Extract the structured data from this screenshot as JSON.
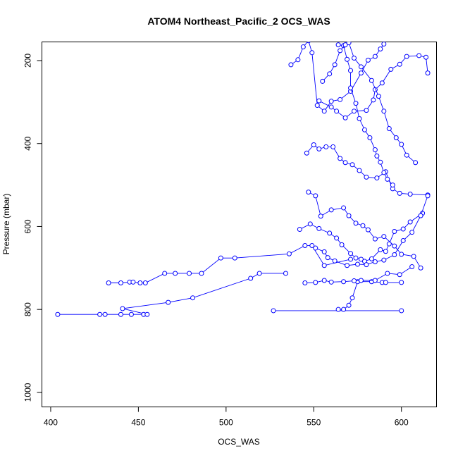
{
  "chart_data": {
    "type": "line",
    "title": "ATOM4 Northeast_Pacific_2 OCS_WAS",
    "xlabel": "OCS_WAS",
    "ylabel": "Pressure (mbar)",
    "xlim": [
      395,
      620
    ],
    "ylim": [
      1035,
      155
    ],
    "y_inverted": true,
    "x_ticks": [
      400,
      450,
      500,
      550,
      600
    ],
    "y_ticks": [
      200,
      400,
      600,
      800,
      1000
    ],
    "grid": false,
    "legend": "none",
    "color": "#0000ff",
    "marker": "open-circle",
    "series": [
      {
        "points": [
          [
            404,
            812
          ],
          [
            428,
            812
          ],
          [
            431,
            812
          ],
          [
            440,
            812
          ],
          [
            446,
            812
          ],
          [
            453,
            812
          ],
          [
            455,
            812
          ],
          [
            441,
            798
          ],
          [
            467,
            783
          ],
          [
            481,
            772
          ],
          [
            514,
            725
          ],
          [
            519,
            713
          ],
          [
            534,
            713
          ]
        ]
      },
      {
        "points": [
          [
            433,
            736
          ],
          [
            440,
            736
          ],
          [
            445,
            734
          ],
          [
            447,
            734
          ],
          [
            451,
            736
          ],
          [
            454,
            736
          ],
          [
            465,
            713
          ],
          [
            471,
            713
          ],
          [
            479,
            713
          ],
          [
            486,
            713
          ],
          [
            497,
            676
          ],
          [
            505,
            676
          ],
          [
            536,
            666
          ],
          [
            545,
            646
          ],
          [
            549,
            646
          ],
          [
            556,
            694
          ],
          [
            571,
            679
          ]
        ]
      },
      {
        "points": [
          [
            527,
            803
          ],
          [
            600,
            803
          ]
        ]
      },
      {
        "points": [
          [
            564,
            800
          ],
          [
            567,
            800
          ],
          [
            570,
            790
          ],
          [
            572,
            772
          ],
          [
            575,
            733
          ],
          [
            583,
            733
          ],
          [
            589,
            735
          ],
          [
            591,
            735
          ],
          [
            600,
            735
          ]
        ]
      },
      {
        "points": [
          [
            545,
            736
          ],
          [
            551,
            735
          ],
          [
            556,
            730
          ],
          [
            560,
            734
          ],
          [
            567,
            733
          ],
          [
            573,
            731
          ],
          [
            577,
            730
          ],
          [
            585,
            730
          ],
          [
            592,
            713
          ],
          [
            599,
            716
          ],
          [
            606,
            697
          ]
        ]
      },
      {
        "points": [
          [
            537,
            210
          ],
          [
            541,
            198
          ],
          [
            544,
            167
          ],
          [
            547,
            152
          ],
          [
            549,
            181
          ],
          [
            552,
            308
          ],
          [
            556,
            322
          ],
          [
            560,
            298
          ],
          [
            565,
            294
          ],
          [
            571,
            274
          ],
          [
            577,
            230
          ],
          [
            581,
            199
          ],
          [
            585,
            190
          ],
          [
            588,
            172
          ],
          [
            590,
            160
          ]
        ]
      },
      {
        "points": [
          [
            553,
            297
          ],
          [
            560,
            312
          ],
          [
            563,
            322
          ],
          [
            568,
            338
          ],
          [
            573,
            322
          ],
          [
            580,
            320
          ],
          [
            584,
            295
          ],
          [
            585,
            270
          ],
          [
            589,
            254
          ],
          [
            594,
            221
          ],
          [
            599,
            209
          ],
          [
            603,
            190
          ],
          [
            610,
            188
          ],
          [
            614,
            192
          ],
          [
            615,
            230
          ]
        ]
      },
      {
        "points": [
          [
            546,
            423
          ],
          [
            550,
            403
          ],
          [
            553,
            413
          ],
          [
            557,
            408
          ],
          [
            561,
            408
          ],
          [
            565,
            436
          ],
          [
            568,
            446
          ],
          [
            572,
            451
          ],
          [
            576,
            465
          ],
          [
            580,
            481
          ],
          [
            586,
            483
          ],
          [
            591,
            468
          ],
          [
            595,
            509
          ],
          [
            599,
            520
          ],
          [
            605,
            522
          ],
          [
            615,
            524
          ]
        ]
      },
      {
        "points": [
          [
            547,
            517
          ],
          [
            551,
            526
          ],
          [
            554,
            575
          ],
          [
            560,
            560
          ],
          [
            567,
            555
          ],
          [
            570,
            574
          ],
          [
            574,
            592
          ],
          [
            578,
            598
          ],
          [
            581,
            608
          ],
          [
            585,
            630
          ],
          [
            590,
            624
          ],
          [
            596,
            647
          ],
          [
            600,
            667
          ],
          [
            607,
            672
          ],
          [
            611,
            700
          ]
        ]
      },
      {
        "points": [
          [
            542,
            607
          ],
          [
            548,
            594
          ],
          [
            553,
            605
          ],
          [
            559,
            616
          ],
          [
            563,
            628
          ],
          [
            566,
            644
          ],
          [
            571,
            665
          ],
          [
            574,
            676
          ],
          [
            577,
            679
          ],
          [
            579,
            684
          ],
          [
            583,
            678
          ],
          [
            588,
            656
          ],
          [
            591,
            660
          ],
          [
            593,
            642
          ],
          [
            596,
            612
          ],
          [
            601,
            606
          ],
          [
            605,
            589
          ],
          [
            612,
            568
          ]
        ]
      },
      {
        "points": [
          [
            551,
            652
          ],
          [
            556,
            661
          ],
          [
            558,
            675
          ],
          [
            562,
            683
          ],
          [
            569,
            694
          ],
          [
            575,
            691
          ],
          [
            580,
            692
          ],
          [
            585,
            685
          ],
          [
            590,
            681
          ],
          [
            596,
            668
          ],
          [
            601,
            634
          ],
          [
            606,
            614
          ],
          [
            611,
            574
          ],
          [
            615,
            526
          ]
        ]
      },
      {
        "points": [
          [
            564,
            162
          ],
          [
            567,
            164
          ],
          [
            569,
            197
          ],
          [
            571,
            224
          ],
          [
            571,
            266
          ],
          [
            574,
            303
          ],
          [
            576,
            340
          ],
          [
            579,
            367
          ],
          [
            582,
            386
          ],
          [
            585,
            415
          ],
          [
            586,
            430
          ],
          [
            588,
            445
          ],
          [
            590,
            470
          ],
          [
            592,
            486
          ],
          [
            595,
            500
          ]
        ]
      },
      {
        "points": [
          [
            555,
            250
          ],
          [
            559,
            232
          ],
          [
            562,
            210
          ],
          [
            565,
            176
          ],
          [
            568,
            162
          ],
          [
            570,
            157
          ],
          [
            573,
            194
          ],
          [
            577,
            215
          ],
          [
            583,
            248
          ],
          [
            587,
            286
          ],
          [
            590,
            322
          ],
          [
            593,
            364
          ],
          [
            597,
            386
          ],
          [
            600,
            402
          ],
          [
            603,
            428
          ],
          [
            608,
            446
          ]
        ]
      }
    ]
  }
}
